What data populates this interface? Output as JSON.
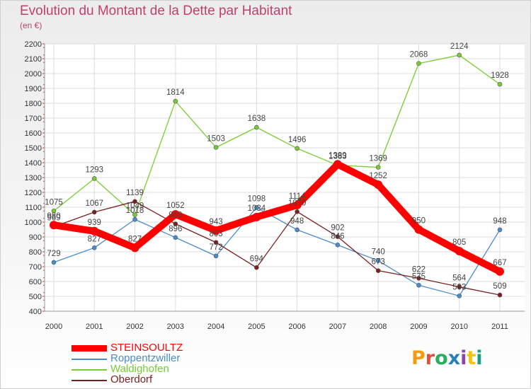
{
  "title": "Evolution du Montant de la Dette par Habitant",
  "subtitle": "(en €)",
  "logo": {
    "text": "Proxiti",
    "colors": [
      "#f39c12",
      "#e74c3c",
      "#27ae60",
      "#2980b9",
      "#8e44ad",
      "#f1c40f",
      "#16a085"
    ]
  },
  "chart_data": {
    "type": "line",
    "x": [
      "2000",
      "2001",
      "2002",
      "2003",
      "2004",
      "2005",
      "2006",
      "2007",
      "2008",
      "2009",
      "2010",
      "2011"
    ],
    "ylim": [
      400,
      2200
    ],
    "yticks": [
      400,
      500,
      600,
      700,
      800,
      900,
      1000,
      1100,
      1200,
      1300,
      1400,
      1500,
      1600,
      1700,
      1800,
      1900,
      2000,
      2100,
      2200
    ],
    "grid": true,
    "legend_position": "bottom-left",
    "series": [
      {
        "name": "STEINSOULTZ",
        "color": "#ff0000",
        "values": [
          980,
          939,
          827,
          1052,
          943,
          1034,
          1114,
          1389,
          1252,
          950,
          805,
          667
        ]
      },
      {
        "name": "Roppentzwiller",
        "color": "#4a8cc9",
        "values": [
          729,
          827,
          1018,
          896,
          772,
          1098,
          948,
          846,
          740,
          575,
          503,
          948
        ]
      },
      {
        "name": "Waldighofen",
        "color": "#77cc33",
        "values": [
          1075,
          1293,
          1049,
          1814,
          1503,
          1638,
          1496,
          1383,
          1369,
          2068,
          2124,
          1928
        ]
      },
      {
        "name": "Oberdorf",
        "color": "#7a1f1f",
        "values": [
          969,
          1067,
          1139,
          988,
          863,
          694,
          1070,
          902,
          673,
          622,
          564,
          509
        ]
      }
    ]
  }
}
